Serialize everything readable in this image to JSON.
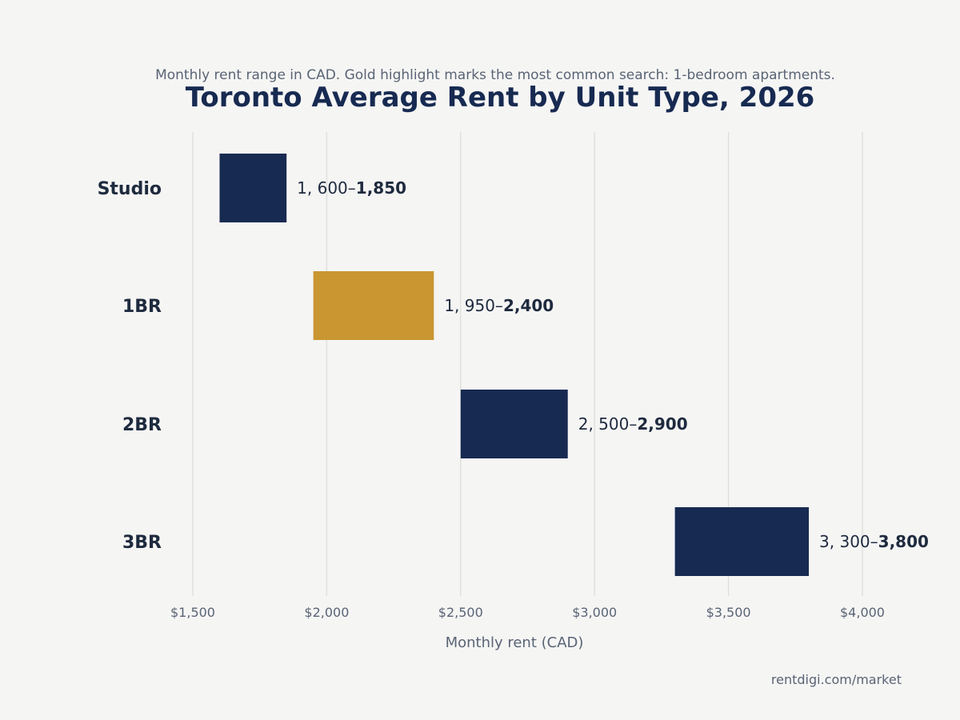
{
  "colors": {
    "background": "#f5f5f4",
    "bar": "#172a51",
    "highlight": "#c99631",
    "title": "#172a51",
    "text": "#1e2a3e",
    "muted": "#5a6475",
    "grid": "#e0e0de"
  },
  "chart_data": {
    "type": "bar",
    "orientation": "horizontal-range",
    "title": "Toronto Average Rent by Unit Type, 2026",
    "subtitle": "Monthly rent range in CAD. Gold highlight marks the most common search: 1-bedroom apartments.",
    "xlabel": "Monthly rent (CAD)",
    "ylabel": "",
    "xlim": [
      1500,
      4000
    ],
    "xticks": [
      1500,
      2000,
      2500,
      3000,
      3500,
      4000
    ],
    "xtick_labels": [
      "$1,500",
      "$2,000",
      "$2,500",
      "$3,000",
      "$3,500",
      "$4,000"
    ],
    "grid": true,
    "categories": [
      "Studio",
      "1BR",
      "2BR",
      "3BR"
    ],
    "ranges": [
      {
        "low": 1600,
        "high": 1850,
        "highlight": false,
        "label_low": "1, 600–",
        "label_high": "1,850"
      },
      {
        "low": 1950,
        "high": 2400,
        "highlight": true,
        "label_low": "1, 950–",
        "label_high": "2,400"
      },
      {
        "low": 2500,
        "high": 2900,
        "highlight": false,
        "label_low": "2, 500–",
        "label_high": "2,900"
      },
      {
        "low": 3300,
        "high": 3800,
        "highlight": false,
        "label_low": "3, 300–",
        "label_high": "3,800"
      }
    ],
    "source": "rentdigi.com/market"
  }
}
